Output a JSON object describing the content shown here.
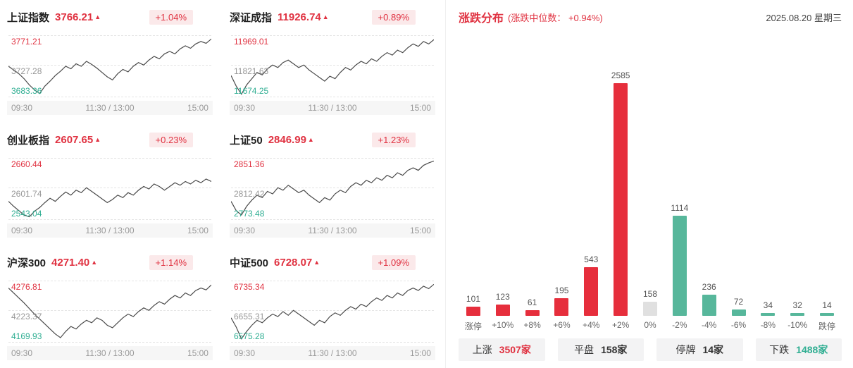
{
  "indices": [
    {
      "name": "上证指数",
      "value": "3766.21",
      "arrow": "▲",
      "change": "+1.04%",
      "y_top": "3771.21",
      "y_mid": "3727.28",
      "y_bottom": "3683.36",
      "x_left": "09:30",
      "x_mid": "11:30 / 13:00",
      "x_right": "15:00",
      "points": [
        0.5,
        0.44,
        0.38,
        0.3,
        0.2,
        0.12,
        0.06,
        0.18,
        0.26,
        0.35,
        0.42,
        0.5,
        0.46,
        0.54,
        0.5,
        0.58,
        0.53,
        0.47,
        0.4,
        0.33,
        0.28,
        0.38,
        0.45,
        0.41,
        0.5,
        0.56,
        0.52,
        0.6,
        0.66,
        0.62,
        0.7,
        0.74,
        0.7,
        0.78,
        0.83,
        0.79,
        0.86,
        0.9,
        0.87,
        0.94
      ]
    },
    {
      "name": "深证成指",
      "value": "11926.74",
      "arrow": "▲",
      "change": "+0.89%",
      "y_top": "11969.01",
      "y_mid": "11821.63",
      "y_bottom": "11674.25",
      "x_left": "09:30",
      "x_mid": "11:30 / 13:00",
      "x_right": "15:00",
      "points": [
        0.35,
        0.18,
        0.05,
        0.2,
        0.3,
        0.4,
        0.36,
        0.46,
        0.52,
        0.48,
        0.56,
        0.6,
        0.54,
        0.48,
        0.52,
        0.44,
        0.38,
        0.32,
        0.26,
        0.34,
        0.3,
        0.4,
        0.48,
        0.44,
        0.52,
        0.58,
        0.54,
        0.62,
        0.58,
        0.66,
        0.72,
        0.68,
        0.76,
        0.72,
        0.8,
        0.86,
        0.82,
        0.9,
        0.86,
        0.93
      ]
    },
    {
      "name": "创业板指",
      "value": "2607.65",
      "arrow": "▲",
      "change": "+0.23%",
      "y_top": "2660.44",
      "y_mid": "2601.74",
      "y_bottom": "2543.04",
      "x_left": "09:30",
      "x_mid": "11:30 / 13:00",
      "x_right": "15:00",
      "points": [
        0.3,
        0.22,
        0.15,
        0.08,
        0.05,
        0.14,
        0.2,
        0.28,
        0.35,
        0.3,
        0.38,
        0.45,
        0.4,
        0.48,
        0.44,
        0.52,
        0.46,
        0.4,
        0.34,
        0.28,
        0.33,
        0.4,
        0.36,
        0.44,
        0.4,
        0.48,
        0.54,
        0.5,
        0.58,
        0.54,
        0.48,
        0.54,
        0.6,
        0.56,
        0.62,
        0.58,
        0.64,
        0.6,
        0.66,
        0.62
      ]
    },
    {
      "name": "上证50",
      "value": "2846.99",
      "arrow": "▲",
      "change": "+1.23%",
      "y_top": "2851.36",
      "y_mid": "2812.42",
      "y_bottom": "2773.48",
      "x_left": "09:30",
      "x_mid": "11:30 / 13:00",
      "x_right": "15:00",
      "points": [
        0.3,
        0.15,
        0.08,
        0.22,
        0.32,
        0.4,
        0.36,
        0.46,
        0.42,
        0.52,
        0.48,
        0.56,
        0.5,
        0.44,
        0.48,
        0.4,
        0.34,
        0.28,
        0.36,
        0.32,
        0.42,
        0.48,
        0.44,
        0.54,
        0.6,
        0.56,
        0.64,
        0.6,
        0.68,
        0.64,
        0.72,
        0.68,
        0.76,
        0.72,
        0.8,
        0.84,
        0.8,
        0.88,
        0.92,
        0.95
      ]
    },
    {
      "name": "沪深300",
      "value": "4271.40",
      "arrow": "▲",
      "change": "+1.14%",
      "y_top": "4276.81",
      "y_mid": "4223.37",
      "y_bottom": "4169.93",
      "x_left": "09:30",
      "x_mid": "11:30 / 13:00",
      "x_right": "15:00",
      "points": [
        0.88,
        0.8,
        0.72,
        0.64,
        0.55,
        0.46,
        0.38,
        0.3,
        0.22,
        0.14,
        0.08,
        0.18,
        0.26,
        0.22,
        0.3,
        0.36,
        0.32,
        0.4,
        0.36,
        0.28,
        0.24,
        0.32,
        0.4,
        0.46,
        0.42,
        0.5,
        0.56,
        0.52,
        0.6,
        0.66,
        0.62,
        0.7,
        0.76,
        0.72,
        0.8,
        0.76,
        0.84,
        0.88,
        0.85,
        0.93
      ]
    },
    {
      "name": "中证500",
      "value": "6728.07",
      "arrow": "▲",
      "change": "+1.09%",
      "y_top": "6735.34",
      "y_mid": "6655.31",
      "y_bottom": "6575.28",
      "x_left": "09:30",
      "x_mid": "11:30 / 13:00",
      "x_right": "15:00",
      "points": [
        0.4,
        0.25,
        0.06,
        0.18,
        0.28,
        0.36,
        0.32,
        0.4,
        0.46,
        0.42,
        0.5,
        0.44,
        0.52,
        0.46,
        0.4,
        0.34,
        0.28,
        0.36,
        0.32,
        0.42,
        0.48,
        0.44,
        0.52,
        0.58,
        0.54,
        0.62,
        0.58,
        0.66,
        0.72,
        0.68,
        0.76,
        0.72,
        0.8,
        0.76,
        0.84,
        0.88,
        0.84,
        0.91,
        0.87,
        0.94
      ]
    }
  ],
  "distribution": {
    "title": "涨跌分布",
    "subtitle": "(涨跌中位数： +0.94%)",
    "date": "2025.08.20 星期三"
  },
  "stats": [
    {
      "label": "上涨",
      "value": "3507家",
      "color": "#e03241"
    },
    {
      "label": "平盘",
      "value": "158家",
      "color": "#333333"
    },
    {
      "label": "停牌",
      "value": "14家",
      "color": "#333333"
    },
    {
      "label": "下跌",
      "value": "1488家",
      "color": "#2fae92"
    }
  ],
  "colors": {
    "red": "#e62e3c",
    "green": "#57b79b",
    "gray": "#e0e0e0",
    "line": "#4a4a4a"
  },
  "chart_data": [
    {
      "type": "bar",
      "title": "涨跌分布",
      "subtitle": "(涨跌中位数： +0.94%)",
      "categories": [
        "涨停",
        "+10%",
        "+8%",
        "+6%",
        "+4%",
        "+2%",
        "0%",
        "-2%",
        "-4%",
        "-6%",
        "-8%",
        "-10%",
        "跌停"
      ],
      "values": [
        101,
        123,
        61,
        195,
        543,
        2585,
        158,
        1114,
        236,
        72,
        34,
        32,
        14
      ],
      "colors": [
        "red",
        "red",
        "red",
        "red",
        "red",
        "red",
        "gray",
        "green",
        "green",
        "green",
        "green",
        "green",
        "green"
      ],
      "ylim": [
        0,
        2585
      ],
      "legend": "none",
      "grid": false
    },
    {
      "type": "line",
      "title": "上证指数",
      "close": 3766.21,
      "change": "+1.04%",
      "y_ticks": [
        3771.21,
        3727.28,
        3683.36
      ],
      "x_ticks": [
        "09:30",
        "11:30 / 13:00",
        "15:00"
      ]
    },
    {
      "type": "line",
      "title": "深证成指",
      "close": 11926.74,
      "change": "+0.89%",
      "y_ticks": [
        11969.01,
        11821.63,
        11674.25
      ],
      "x_ticks": [
        "09:30",
        "11:30 / 13:00",
        "15:00"
      ]
    },
    {
      "type": "line",
      "title": "创业板指",
      "close": 2607.65,
      "change": "+0.23%",
      "y_ticks": [
        2660.44,
        2601.74,
        2543.04
      ],
      "x_ticks": [
        "09:30",
        "11:30 / 13:00",
        "15:00"
      ]
    },
    {
      "type": "line",
      "title": "上证50",
      "close": 2846.99,
      "change": "+1.23%",
      "y_ticks": [
        2851.36,
        2812.42,
        2773.48
      ],
      "x_ticks": [
        "09:30",
        "11:30 / 13:00",
        "15:00"
      ]
    },
    {
      "type": "line",
      "title": "沪深300",
      "close": 4271.4,
      "change": "+1.14%",
      "y_ticks": [
        4276.81,
        4223.37,
        4169.93
      ],
      "x_ticks": [
        "09:30",
        "11:30 / 13:00",
        "15:00"
      ]
    },
    {
      "type": "line",
      "title": "中证500",
      "close": 6728.07,
      "change": "+1.09%",
      "y_ticks": [
        6735.34,
        6655.31,
        6575.28
      ],
      "x_ticks": [
        "09:30",
        "11:30 / 13:00",
        "15:00"
      ]
    }
  ]
}
